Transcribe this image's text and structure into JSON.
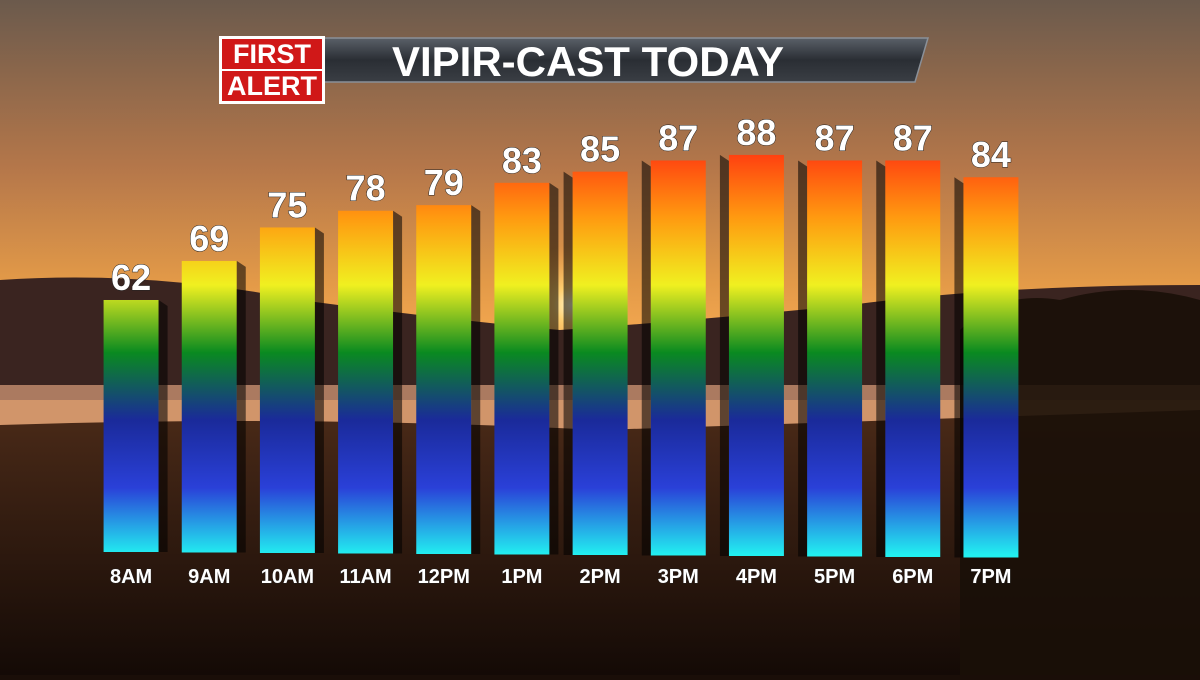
{
  "chart_data": {
    "type": "bar",
    "title": "VIPIR-CAST TODAY",
    "badge": [
      "FIRST",
      "ALERT"
    ],
    "categories": [
      "8AM",
      "9AM",
      "10AM",
      "11AM",
      "12PM",
      "1PM",
      "2PM",
      "3PM",
      "4PM",
      "5PM",
      "6PM",
      "7PM"
    ],
    "values": [
      62,
      69,
      75,
      78,
      79,
      83,
      85,
      87,
      88,
      87,
      87,
      84
    ],
    "color_scale": [
      "#22f0f0",
      "#2a40d8",
      "#1a2a9a",
      "#0a8a20",
      "#f0f020",
      "#ff9a10",
      "#ff3a10"
    ]
  }
}
